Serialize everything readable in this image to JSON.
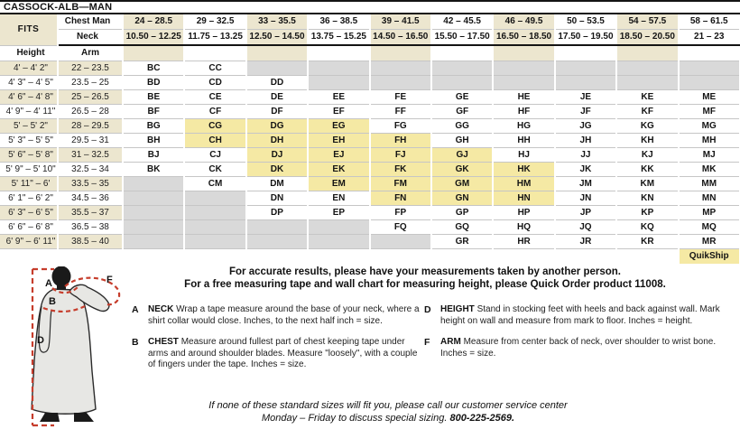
{
  "title": "CASSOCK-ALB—MAN",
  "table": {
    "fits_label": "FITS",
    "chest_label": "Chest Man",
    "neck_label": "Neck",
    "height_label": "Height",
    "arm_label": "Arm",
    "quickship_label": "QuikShip",
    "columns": [
      {
        "chest": "24 – 28.5",
        "neck": "10.50 – 12.25",
        "shaded": true
      },
      {
        "chest": "29 – 32.5",
        "neck": "11.75 – 13.25",
        "shaded": false
      },
      {
        "chest": "33 – 35.5",
        "neck": "12.50 – 14.50",
        "shaded": true
      },
      {
        "chest": "36 – 38.5",
        "neck": "13.75 – 15.25",
        "shaded": false
      },
      {
        "chest": "39 – 41.5",
        "neck": "14.50 – 16.50",
        "shaded": true
      },
      {
        "chest": "42 – 45.5",
        "neck": "15.50 – 17.50",
        "shaded": false
      },
      {
        "chest": "46 – 49.5",
        "neck": "16.50 – 18.50",
        "shaded": true
      },
      {
        "chest": "50 – 53.5",
        "neck": "17.50 – 19.50",
        "shaded": false
      },
      {
        "chest": "54 – 57.5",
        "neck": "18.50 – 20.50",
        "shaded": true
      },
      {
        "chest": "58 – 61.5",
        "neck": "21 – 23",
        "shaded": false
      }
    ],
    "rows": [
      {
        "height": "4' – 4' 2\"",
        "arm": "22 – 23.5",
        "cells": [
          [
            "BC",
            "n"
          ],
          [
            "CC",
            "n"
          ],
          [
            "",
            "x"
          ],
          [
            "",
            "x"
          ],
          [
            "",
            "x"
          ],
          [
            "",
            "x"
          ],
          [
            "",
            "x"
          ],
          [
            "",
            "x"
          ],
          [
            "",
            "x"
          ],
          [
            "",
            "x"
          ]
        ]
      },
      {
        "height": "4' 3\" – 4' 5\"",
        "arm": "23.5 – 25",
        "cells": [
          [
            "BD",
            "n"
          ],
          [
            "CD",
            "n"
          ],
          [
            "DD",
            "n"
          ],
          [
            "",
            "x"
          ],
          [
            "",
            "x"
          ],
          [
            "",
            "x"
          ],
          [
            "",
            "x"
          ],
          [
            "",
            "x"
          ],
          [
            "",
            "x"
          ],
          [
            "",
            "x"
          ]
        ]
      },
      {
        "height": "4' 6\" – 4' 8\"",
        "arm": "25 – 26.5",
        "cells": [
          [
            "BE",
            "n"
          ],
          [
            "CE",
            "n"
          ],
          [
            "DE",
            "n"
          ],
          [
            "EE",
            "n"
          ],
          [
            "FE",
            "n"
          ],
          [
            "GE",
            "n"
          ],
          [
            "HE",
            "n"
          ],
          [
            "JE",
            "n"
          ],
          [
            "KE",
            "n"
          ],
          [
            "ME",
            "n"
          ]
        ]
      },
      {
        "height": "4' 9\" – 4' 11\"",
        "arm": "26.5 – 28",
        "cells": [
          [
            "BF",
            "n"
          ],
          [
            "CF",
            "n"
          ],
          [
            "DF",
            "n"
          ],
          [
            "EF",
            "n"
          ],
          [
            "FF",
            "n"
          ],
          [
            "GF",
            "n"
          ],
          [
            "HF",
            "n"
          ],
          [
            "JF",
            "n"
          ],
          [
            "KF",
            "n"
          ],
          [
            "MF",
            "n"
          ]
        ]
      },
      {
        "height": "5' – 5' 2\"",
        "arm": "28 – 29.5",
        "cells": [
          [
            "BG",
            "n"
          ],
          [
            "CG",
            "q"
          ],
          [
            "DG",
            "q"
          ],
          [
            "EG",
            "q"
          ],
          [
            "FG",
            "n"
          ],
          [
            "GG",
            "n"
          ],
          [
            "HG",
            "n"
          ],
          [
            "JG",
            "n"
          ],
          [
            "KG",
            "n"
          ],
          [
            "MG",
            "n"
          ]
        ]
      },
      {
        "height": "5' 3\" – 5' 5\"",
        "arm": "29.5 – 31",
        "cells": [
          [
            "BH",
            "n"
          ],
          [
            "CH",
            "q"
          ],
          [
            "DH",
            "q"
          ],
          [
            "EH",
            "q"
          ],
          [
            "FH",
            "q"
          ],
          [
            "GH",
            "n"
          ],
          [
            "HH",
            "n"
          ],
          [
            "JH",
            "n"
          ],
          [
            "KH",
            "n"
          ],
          [
            "MH",
            "n"
          ]
        ]
      },
      {
        "height": "5' 6\" – 5' 8\"",
        "arm": "31 – 32.5",
        "cells": [
          [
            "BJ",
            "n"
          ],
          [
            "CJ",
            "n"
          ],
          [
            "DJ",
            "q"
          ],
          [
            "EJ",
            "q"
          ],
          [
            "FJ",
            "q"
          ],
          [
            "GJ",
            "q"
          ],
          [
            "HJ",
            "n"
          ],
          [
            "JJ",
            "n"
          ],
          [
            "KJ",
            "n"
          ],
          [
            "MJ",
            "n"
          ]
        ]
      },
      {
        "height": "5' 9\" – 5' 10\"",
        "arm": "32.5 – 34",
        "cells": [
          [
            "BK",
            "n"
          ],
          [
            "CK",
            "n"
          ],
          [
            "DK",
            "q"
          ],
          [
            "EK",
            "q"
          ],
          [
            "FK",
            "q"
          ],
          [
            "GK",
            "q"
          ],
          [
            "HK",
            "q"
          ],
          [
            "JK",
            "n"
          ],
          [
            "KK",
            "n"
          ],
          [
            "MK",
            "n"
          ]
        ]
      },
      {
        "height": "5' 11\" – 6'",
        "arm": "33.5 – 35",
        "cells": [
          [
            "",
            "x"
          ],
          [
            "CM",
            "n"
          ],
          [
            "DM",
            "n"
          ],
          [
            "EM",
            "q"
          ],
          [
            "FM",
            "q"
          ],
          [
            "GM",
            "q"
          ],
          [
            "HM",
            "q"
          ],
          [
            "JM",
            "n"
          ],
          [
            "KM",
            "n"
          ],
          [
            "MM",
            "n"
          ]
        ]
      },
      {
        "height": "6' 1\" – 6' 2\"",
        "arm": "34.5 – 36",
        "cells": [
          [
            "",
            "x"
          ],
          [
            "",
            "x"
          ],
          [
            "DN",
            "n"
          ],
          [
            "EN",
            "n"
          ],
          [
            "FN",
            "q"
          ],
          [
            "GN",
            "q"
          ],
          [
            "HN",
            "q"
          ],
          [
            "JN",
            "n"
          ],
          [
            "KN",
            "n"
          ],
          [
            "MN",
            "n"
          ]
        ]
      },
      {
        "height": "6' 3\" – 6' 5\"",
        "arm": "35.5 – 37",
        "cells": [
          [
            "",
            "x"
          ],
          [
            "",
            "x"
          ],
          [
            "DP",
            "n"
          ],
          [
            "EP",
            "n"
          ],
          [
            "FP",
            "n"
          ],
          [
            "GP",
            "n"
          ],
          [
            "HP",
            "n"
          ],
          [
            "JP",
            "n"
          ],
          [
            "KP",
            "n"
          ],
          [
            "MP",
            "n"
          ]
        ]
      },
      {
        "height": "6' 6\" – 6' 8\"",
        "arm": "36.5 – 38",
        "cells": [
          [
            "",
            "x"
          ],
          [
            "",
            "x"
          ],
          [
            "",
            "x"
          ],
          [
            "",
            "x"
          ],
          [
            "FQ",
            "n"
          ],
          [
            "GQ",
            "n"
          ],
          [
            "HQ",
            "n"
          ],
          [
            "JQ",
            "n"
          ],
          [
            "KQ",
            "n"
          ],
          [
            "MQ",
            "n"
          ]
        ]
      },
      {
        "height": "6' 9\" – 6' 11\"",
        "arm": "38.5 – 40",
        "cells": [
          [
            "",
            "x"
          ],
          [
            "",
            "x"
          ],
          [
            "",
            "x"
          ],
          [
            "",
            "x"
          ],
          [
            "",
            "x"
          ],
          [
            "GR",
            "n"
          ],
          [
            "HR",
            "n"
          ],
          [
            "JR",
            "n"
          ],
          [
            "KR",
            "n"
          ],
          [
            "MR",
            "n"
          ]
        ]
      }
    ]
  },
  "notes": {
    "line1": "For accurate results, please have your measurements taken by another person.",
    "line2": "For a free measuring tape and wall chart for measuring height, please Quick Order product 11008."
  },
  "instructions": {
    "left": [
      {
        "letter": "A",
        "term": "NECK",
        "text": "Wrap a tape measure around the base of your neck, where a shirt collar would close. Inches, to the next half inch = size."
      },
      {
        "letter": "B",
        "term": "CHEST",
        "text": "Measure around fullest part of chest keeping tape under arms and around shoulder blades. Measure \"loosely\", with a couple of fingers under the tape. Inches = size."
      }
    ],
    "right": [
      {
        "letter": "D",
        "term": "HEIGHT",
        "text": "Stand in stocking feet with heels and back against wall. Mark height on wall and measure from mark to floor. Inches = height."
      },
      {
        "letter": "F",
        "term": "ARM",
        "text": "Measure from center back of neck, over shoulder to wrist bone. Inches = size."
      }
    ]
  },
  "footer": {
    "line1": "If none of these standard sizes will fit you, please call our customer service center",
    "line2_regular": "Monday – Friday to discuss special sizing. ",
    "line2_phone": "800-225-2569."
  },
  "figure": {
    "labels": {
      "neck": "A",
      "chest": "B",
      "height": "D",
      "arm": "F"
    }
  },
  "colors": {
    "header_cream": "#ece6cf",
    "quickship_yellow": "#f5e9a4",
    "unavailable_gray": "#d9d9d9",
    "measure_line_red": "#c63d2c"
  }
}
